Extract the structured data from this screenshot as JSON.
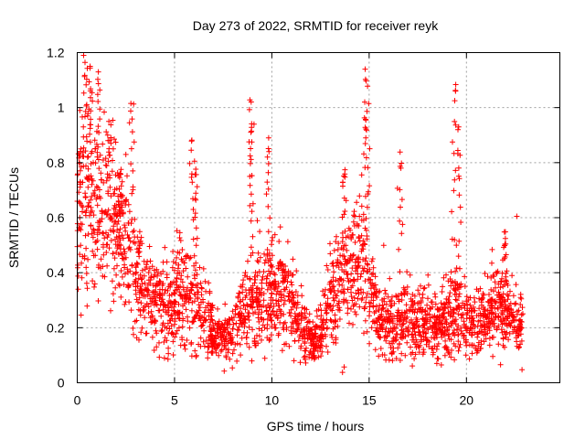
{
  "chart_data": {
    "type": "scatter",
    "title": "Day 273 of 2022, SRMTID for receiver reyk",
    "xlabel": "GPS time / hours",
    "ylabel": "SRMTID / TECUs",
    "xlim": [
      0,
      24.8
    ],
    "ylim": [
      0,
      1.2
    ],
    "xticks": [
      0,
      5,
      10,
      15,
      20
    ],
    "xtick_labels": [
      "0",
      "5",
      "10",
      "15",
      "20"
    ],
    "yticks": [
      0,
      0.2,
      0.4,
      0.6,
      0.8,
      1,
      1.2
    ],
    "ytick_labels": [
      "0",
      "0.2",
      "0.4",
      "0.6",
      "0.8",
      "1",
      "1.2"
    ],
    "grid": true,
    "marker": "+",
    "color": "#ff0000",
    "series": [
      {
        "name": "reyk",
        "x_range": [
          0,
          22.9
        ],
        "trend": [
          [
            0,
            0.55
          ],
          [
            0.5,
            0.72
          ],
          [
            1,
            0.62
          ],
          [
            1.5,
            0.62
          ],
          [
            2,
            0.55
          ],
          [
            2.5,
            0.48
          ],
          [
            3,
            0.4
          ],
          [
            3.5,
            0.32
          ],
          [
            4,
            0.29
          ],
          [
            4.5,
            0.28
          ],
          [
            5,
            0.3
          ],
          [
            5.5,
            0.33
          ],
          [
            6,
            0.32
          ],
          [
            6.5,
            0.25
          ],
          [
            7,
            0.18
          ],
          [
            7.5,
            0.17
          ],
          [
            8,
            0.18
          ],
          [
            8.5,
            0.28
          ],
          [
            9,
            0.3
          ],
          [
            9.5,
            0.3
          ],
          [
            10,
            0.32
          ],
          [
            10.5,
            0.34
          ],
          [
            11,
            0.3
          ],
          [
            11.5,
            0.2
          ],
          [
            12,
            0.15
          ],
          [
            12.5,
            0.18
          ],
          [
            13,
            0.27
          ],
          [
            13.5,
            0.35
          ],
          [
            14,
            0.4
          ],
          [
            14.5,
            0.45
          ],
          [
            15,
            0.38
          ],
          [
            15.5,
            0.22
          ],
          [
            16,
            0.22
          ],
          [
            16.5,
            0.22
          ],
          [
            17,
            0.24
          ],
          [
            17.5,
            0.22
          ],
          [
            18,
            0.22
          ],
          [
            18.5,
            0.2
          ],
          [
            19,
            0.22
          ],
          [
            19.5,
            0.28
          ],
          [
            20,
            0.22
          ],
          [
            20.5,
            0.22
          ],
          [
            21,
            0.25
          ],
          [
            21.5,
            0.26
          ],
          [
            22,
            0.27
          ],
          [
            22.5,
            0.22
          ],
          [
            22.9,
            0.2
          ]
        ],
        "spikes": [
          {
            "x": 0.1,
            "y": 0.85
          },
          {
            "x": 0.4,
            "y": 1.19
          },
          {
            "x": 0.7,
            "y": 1.15
          },
          {
            "x": 1.1,
            "y": 1.13
          },
          {
            "x": 1.6,
            "y": 0.95
          },
          {
            "x": 2.2,
            "y": 0.78
          },
          {
            "x": 2.8,
            "y": 1.04
          },
          {
            "x": 5.9,
            "y": 0.89
          },
          {
            "x": 6.1,
            "y": 0.78
          },
          {
            "x": 8.9,
            "y": 1.05
          },
          {
            "x": 9.0,
            "y": 0.94
          },
          {
            "x": 9.8,
            "y": 0.89
          },
          {
            "x": 13.7,
            "y": 0.79
          },
          {
            "x": 14.8,
            "y": 1.14
          },
          {
            "x": 14.9,
            "y": 1.02
          },
          {
            "x": 16.6,
            "y": 0.84
          },
          {
            "x": 19.4,
            "y": 1.1
          },
          {
            "x": 19.6,
            "y": 0.93
          },
          {
            "x": 22.0,
            "y": 0.55
          }
        ],
        "point_count": 2600
      }
    ]
  }
}
